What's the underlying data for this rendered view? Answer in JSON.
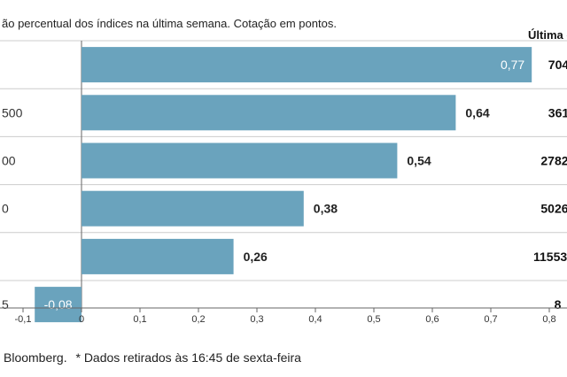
{
  "subtitle": "ão percentual dos índices na última semana. Cotação em pontos.",
  "last_header": "Última c",
  "source": "Bloomberg.",
  "footnote": "* Dados retirados às 16:45 de sexta-feira",
  "colors": {
    "bar": "#6aa3bd",
    "grid": "#cccccc",
    "axis": "#666666"
  },
  "chart_data": {
    "type": "bar",
    "orientation": "horizontal",
    "categories": [
      "",
      "500",
      "00",
      "0",
      "",
      "5"
    ],
    "values": [
      0.77,
      0.64,
      0.54,
      0.38,
      0.26,
      -0.08
    ],
    "value_labels": [
      "0,77",
      "0,64",
      "0,54",
      "0,38",
      "0,26",
      "-0,08"
    ],
    "last_values": [
      "704",
      "361",
      "2782",
      "5026",
      "11553",
      "8"
    ],
    "xlim": [
      -0.1,
      0.8
    ],
    "xticks": [
      -0.1,
      0,
      0.1,
      0.2,
      0.3,
      0.4,
      0.5,
      0.6,
      0.7,
      0.8
    ],
    "xtick_labels": [
      "-0,1",
      "0",
      "0,1",
      "0,2",
      "0,3",
      "0,4",
      "0,5",
      "0,6",
      "0,7",
      "0,8"
    ],
    "grid": "horizontal row separators"
  }
}
